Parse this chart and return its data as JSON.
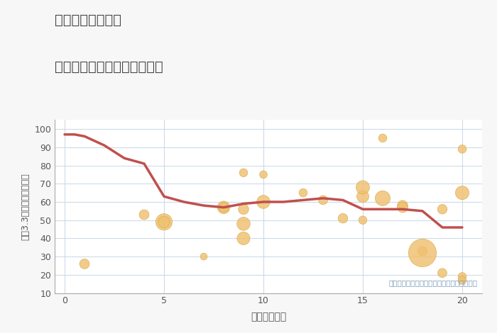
{
  "title_line1": "岐阜県関市板取の",
  "title_line2": "駅距離別中古マンション価格",
  "xlabel": "駅距離（分）",
  "ylabel": "坪（3.3㎡）単価（万円）",
  "ylim": [
    10,
    105
  ],
  "xlim": [
    -0.5,
    21
  ],
  "yticks": [
    10,
    20,
    30,
    40,
    50,
    60,
    70,
    80,
    90,
    100
  ],
  "xticks": [
    0,
    5,
    10,
    15,
    20
  ],
  "annotation": "円の大きさは、取引のあった物件面積を示す",
  "background_color": "#f7f7f7",
  "plot_bg_color": "#ffffff",
  "bubble_color": "#f0c070",
  "bubble_alpha": 0.82,
  "bubble_edge_color": "#d4a840",
  "line_color": "#c0504d",
  "line_width": 2.5,
  "scatter_x": [
    1,
    4,
    5,
    5,
    7,
    8,
    8,
    9,
    9,
    9,
    9,
    10,
    10,
    12,
    13,
    14,
    15,
    15,
    15,
    16,
    16,
    17,
    17,
    18,
    18,
    19,
    19,
    20,
    20,
    20,
    20
  ],
  "scatter_y": [
    26,
    53,
    49,
    49,
    30,
    57,
    57,
    76,
    56,
    48,
    40,
    75,
    60,
    65,
    61,
    51,
    50,
    63,
    68,
    95,
    62,
    58,
    57,
    33,
    32,
    21,
    56,
    89,
    65,
    19,
    17
  ],
  "scatter_size": [
    100,
    100,
    280,
    140,
    50,
    160,
    100,
    70,
    110,
    180,
    170,
    60,
    180,
    70,
    85,
    95,
    70,
    150,
    185,
    70,
    230,
    110,
    110,
    95,
    800,
    85,
    95,
    70,
    190,
    70,
    70
  ],
  "trend_x": [
    0,
    0.5,
    1,
    2,
    3,
    4,
    5,
    6,
    7,
    8,
    9,
    10,
    11,
    12,
    13,
    14,
    15,
    16,
    17,
    18,
    19,
    20
  ],
  "trend_y": [
    97,
    97,
    96,
    91,
    84,
    81,
    63,
    60,
    58,
    57,
    59,
    60,
    60,
    61,
    62,
    61,
    56,
    56,
    56,
    55,
    46,
    46
  ]
}
